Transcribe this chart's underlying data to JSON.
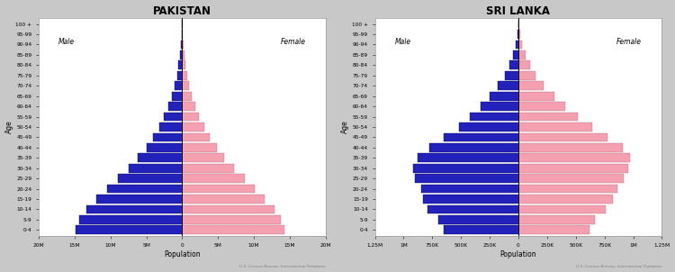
{
  "pakistan": {
    "title": "PAKISTAN",
    "age_groups": [
      "0-4",
      "5-9",
      "10-14",
      "15-19",
      "20-24",
      "25-29",
      "30-34",
      "35-39",
      "40-44",
      "45-49",
      "50-54",
      "55-59",
      "60-64",
      "65-69",
      "70-74",
      "75-79",
      "80-84",
      "85-89",
      "90-94",
      "95-99",
      "100 +"
    ],
    "male": [
      14800000,
      14300000,
      13400000,
      12000000,
      10400000,
      9000000,
      7500000,
      6200000,
      5000000,
      4000000,
      3200000,
      2500000,
      1900000,
      1400000,
      1000000,
      700000,
      500000,
      350000,
      200000,
      100000,
      50000
    ],
    "female": [
      14200000,
      13800000,
      12900000,
      11500000,
      10100000,
      8700000,
      7200000,
      5900000,
      4800000,
      3900000,
      3100000,
      2400000,
      1800000,
      1350000,
      1000000,
      700000,
      500000,
      350000,
      200000,
      100000,
      50000
    ],
    "xlim": 20000000,
    "xticks": [
      -20000000,
      -15000000,
      -10000000,
      -5000000,
      0,
      5000000,
      10000000,
      15000000,
      20000000
    ],
    "xticklabels": [
      "20M",
      "15M",
      "10M",
      "5M",
      "0",
      "5M",
      "10M",
      "15M",
      "20M"
    ],
    "xlabel": "Population",
    "male_color": "#2222bb",
    "female_color": "#f4a0b0",
    "source_text": "U.S. Census Bureau, International Database"
  },
  "srilanka": {
    "title": "SRI LANKA",
    "age_groups": [
      "0-4",
      "5-9",
      "10-14",
      "15-19",
      "20-24",
      "25-29",
      "30-34",
      "35-39",
      "40-44",
      "45-49",
      "50-54",
      "55-59",
      "60-64",
      "65-69",
      "70-74",
      "75-79",
      "80-84",
      "85-89",
      "90-94",
      "95-99",
      "100 +"
    ],
    "male": [
      650000,
      700000,
      790000,
      830000,
      850000,
      900000,
      920000,
      880000,
      780000,
      650000,
      520000,
      420000,
      330000,
      250000,
      180000,
      120000,
      80000,
      45000,
      20000,
      8000,
      2000
    ],
    "female": [
      620000,
      670000,
      760000,
      820000,
      860000,
      920000,
      960000,
      970000,
      910000,
      780000,
      640000,
      520000,
      410000,
      310000,
      220000,
      150000,
      100000,
      60000,
      30000,
      12000,
      3000
    ],
    "xlim": 1250000,
    "xticks": [
      -1250000,
      -1000000,
      -750000,
      -500000,
      -250000,
      0,
      250000,
      500000,
      750000,
      1000000,
      1250000
    ],
    "xticklabels": [
      "1.25M",
      "1M",
      "750K",
      "500K",
      "250K",
      "0",
      "250K",
      "500K",
      "750K",
      "1M",
      "1.25M"
    ],
    "xlabel": "Population",
    "male_color": "#2222bb",
    "female_color": "#f4a0b0",
    "source_text": "U.S. Census Bureau, International Database"
  },
  "figure_bg": "#c8c8c8",
  "axes_bg": "#ffffff",
  "bar_height": 0.85
}
